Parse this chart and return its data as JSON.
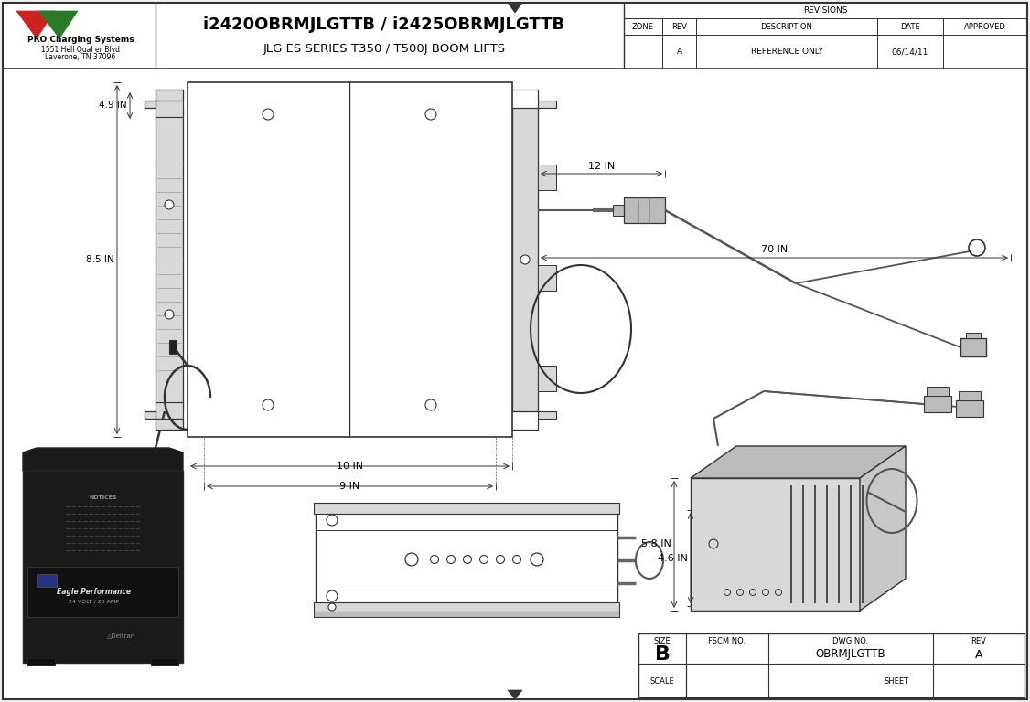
{
  "bg_color": "#f0f0f0",
  "white": "#ffffff",
  "draw_color": "#333333",
  "light_gray": "#d8d8d8",
  "med_gray": "#bbbbbb",
  "dark_gray": "#555555",
  "title_line1": "i2420OBRMJLGTTB / i2425OBRMJLGTTB",
  "title_line2": "JLG ES SERIES T350 / T500J BOOM LIFTS",
  "company_name": "PRO Charging Systems",
  "company_addr1": "1551 Hell Qual er Blvd",
  "company_addr2": "Laverone, TN 37096",
  "rev_title": "REVISIONS",
  "rev_headers": [
    "ZONE",
    "REV",
    "DESCRIPTION",
    "DATE",
    "APPROVED"
  ],
  "rev_row": [
    "",
    "A",
    "REFERENCE ONLY",
    "06/14/11",
    ""
  ],
  "dim_49": "4.9 IN",
  "dim_85": "8.5 IN",
  "dim_10": "10 IN",
  "dim_9": "9 IN",
  "dim_12": "12 IN",
  "dim_70": "70 IN",
  "dim_58": "5.8 IN",
  "dim_46": "4.6 IN",
  "size_label": "SIZE",
  "size_val": "B",
  "fscm_label": "FSCM NO.",
  "dwg_label": "DWG NO.",
  "dwg_val": "OBRMJLGTTB",
  "rev_label": "REV",
  "rev_val": "A",
  "scale_label": "SCALE",
  "sheet_label": "SHEET"
}
